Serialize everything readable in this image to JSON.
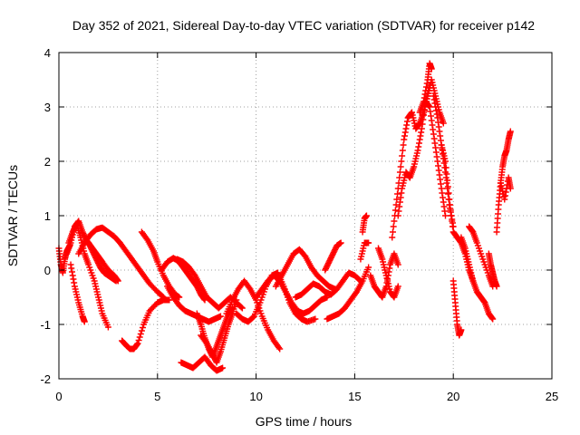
{
  "chart_data": {
    "type": "scatter",
    "title": "Day 352 of 2021, Sidereal Day-to-day VTEC variation (SDTVAR) for receiver p142",
    "xlabel": "GPS time / hours",
    "ylabel": "SDTVAR / TECUs",
    "xlim": [
      0,
      25
    ],
    "ylim": [
      -2,
      4
    ],
    "xticks": [
      "0",
      "5",
      "10",
      "15",
      "20",
      "25"
    ],
    "yticks": [
      "-2",
      "-1",
      "0",
      "1",
      "2",
      "3",
      "4"
    ],
    "grid": true,
    "marker": "+",
    "series": [
      {
        "name": "SDTVAR",
        "color": "#ff0000",
        "tracks": [
          {
            "x": [
              0.0,
              0.1,
              0.2,
              0.3,
              0.4,
              0.55
            ],
            "y": [
              0.4,
              0.1,
              -0.05,
              0.2,
              0.35,
              0.45
            ]
          },
          {
            "x": [
              0.4,
              0.6,
              0.8,
              1.0,
              1.2,
              1.4,
              1.6,
              1.8,
              2.0,
              2.2,
              2.5,
              2.8,
              3.0
            ],
            "y": [
              0.3,
              0.5,
              0.8,
              0.9,
              0.7,
              0.55,
              0.45,
              0.35,
              0.25,
              0.15,
              0.0,
              -0.1,
              -0.2
            ]
          },
          {
            "x": [
              0.5,
              0.7,
              0.9,
              1.1,
              1.3,
              1.5,
              1.8,
              2.0,
              2.2,
              2.5
            ],
            "y": [
              0.5,
              0.7,
              0.85,
              0.6,
              0.3,
              0.1,
              -0.2,
              -0.5,
              -0.8,
              -1.05
            ]
          },
          {
            "x": [
              0.6,
              0.8,
              1.0,
              1.2,
              1.3
            ],
            "y": [
              0.1,
              -0.3,
              -0.6,
              -0.85,
              -0.95
            ]
          },
          {
            "x": [
              1.0,
              1.3,
              1.6,
              1.9,
              2.2,
              2.5,
              2.8,
              3.1,
              3.4,
              3.7,
              4.0,
              4.3,
              4.6,
              5.0,
              5.3
            ],
            "y": [
              0.3,
              0.5,
              0.65,
              0.75,
              0.78,
              0.7,
              0.62,
              0.5,
              0.35,
              0.2,
              0.05,
              -0.1,
              -0.25,
              -0.4,
              -0.5
            ]
          },
          {
            "x": [
              1.5,
              1.7,
              1.9,
              2.1,
              2.3,
              2.5,
              2.7,
              2.9
            ],
            "y": [
              0.5,
              0.35,
              0.2,
              0.05,
              -0.05,
              -0.1,
              -0.15,
              -0.2
            ]
          },
          {
            "x": [
              3.2,
              3.4,
              3.6,
              3.8,
              4.0,
              4.3,
              4.6,
              5.0,
              5.3,
              5.6
            ],
            "y": [
              -1.3,
              -1.38,
              -1.45,
              -1.45,
              -1.35,
              -1.0,
              -0.75,
              -0.6,
              -0.55,
              -0.55
            ]
          },
          {
            "x": [
              4.2,
              4.5,
              4.8,
              5.0,
              5.3,
              5.6,
              5.9,
              6.1
            ],
            "y": [
              0.7,
              0.55,
              0.35,
              0.15,
              -0.1,
              -0.3,
              -0.45,
              -0.5
            ]
          },
          {
            "x": [
              5.2,
              5.5,
              5.8,
              6.0,
              6.2,
              6.4,
              6.6,
              6.8,
              7.0,
              7.2,
              7.4
            ],
            "y": [
              0.0,
              0.15,
              0.22,
              0.18,
              0.1,
              0.0,
              -0.1,
              -0.2,
              -0.3,
              -0.45,
              -0.55
            ]
          },
          {
            "x": [
              5.5,
              5.8,
              6.1,
              6.4,
              6.7,
              7.0,
              7.3,
              7.6,
              7.9,
              8.2
            ],
            "y": [
              -0.3,
              -0.5,
              -0.65,
              -0.75,
              -0.8,
              -0.85,
              -0.9,
              -0.95,
              -0.9,
              -0.85
            ]
          },
          {
            "x": [
              6.0,
              6.3,
              6.6,
              6.9,
              7.2,
              7.5,
              7.8,
              8.1,
              8.4,
              8.7,
              9.0,
              9.3
            ],
            "y": [
              0.2,
              0.15,
              0.05,
              -0.1,
              -0.3,
              -0.5,
              -0.6,
              -0.7,
              -0.6,
              -0.5,
              -0.6,
              -0.7
            ]
          },
          {
            "x": [
              6.2,
              6.5,
              6.8,
              7.1,
              7.4,
              7.7,
              8.0,
              8.3
            ],
            "y": [
              -1.7,
              -1.75,
              -1.8,
              -1.7,
              -1.6,
              -1.75,
              -1.85,
              -1.8
            ]
          },
          {
            "x": [
              7.0,
              7.2,
              7.4,
              7.6,
              7.8,
              8.0,
              8.2,
              8.4,
              8.6,
              8.8
            ],
            "y": [
              -0.8,
              -1.0,
              -1.25,
              -1.45,
              -1.6,
              -1.4,
              -1.2,
              -1.0,
              -0.8,
              -0.7
            ]
          },
          {
            "x": [
              7.2,
              7.5,
              7.8,
              8.0,
              8.2,
              8.4,
              8.6,
              8.8,
              9.0
            ],
            "y": [
              -1.2,
              -1.35,
              -1.55,
              -1.7,
              -1.5,
              -1.25,
              -1.0,
              -0.8,
              -0.55
            ]
          },
          {
            "x": [
              8.5,
              8.8,
              9.1,
              9.4,
              9.7,
              10.0,
              10.3,
              10.6,
              10.9,
              11.2
            ],
            "y": [
              -0.8,
              -0.55,
              -0.35,
              -0.2,
              -0.35,
              -0.55,
              -0.85,
              -1.1,
              -1.3,
              -1.45
            ]
          },
          {
            "x": [
              9.0,
              9.3,
              9.6,
              9.9,
              10.2,
              10.5,
              10.8,
              11.1,
              11.4,
              11.7,
              12.0,
              12.3,
              12.6,
              13.0
            ],
            "y": [
              -0.8,
              -0.9,
              -0.95,
              -0.85,
              -0.6,
              -0.3,
              -0.1,
              -0.05,
              -0.3,
              -0.6,
              -0.8,
              -0.9,
              -0.95,
              -0.9
            ]
          },
          {
            "x": [
              10.0,
              10.3,
              10.6,
              10.9,
              11.2,
              11.5,
              11.8,
              12.1,
              12.4,
              12.7,
              13.0,
              13.3,
              13.6
            ],
            "y": [
              -0.5,
              -0.35,
              -0.2,
              -0.1,
              -0.2,
              -0.4,
              -0.6,
              -0.75,
              -0.8,
              -0.75,
              -0.65,
              -0.55,
              -0.5
            ]
          },
          {
            "x": [
              11.0,
              11.3,
              11.6,
              11.9,
              12.2,
              12.5,
              12.8,
              13.1,
              13.4,
              13.7,
              14.0
            ],
            "y": [
              -0.3,
              -0.1,
              0.1,
              0.3,
              0.38,
              0.25,
              0.05,
              -0.1,
              -0.2,
              -0.3,
              -0.35
            ]
          },
          {
            "x": [
              12.0,
              12.3,
              12.6,
              12.9,
              13.2,
              13.5,
              13.8,
              14.1,
              14.4,
              14.7,
              15.0,
              15.3
            ],
            "y": [
              -0.5,
              -0.45,
              -0.35,
              -0.25,
              -0.3,
              -0.4,
              -0.45,
              -0.35,
              -0.2,
              -0.05,
              -0.1,
              -0.2
            ]
          },
          {
            "x": [
              13.5,
              13.7,
              13.9,
              14.1,
              14.3
            ],
            "y": [
              0.0,
              0.15,
              0.3,
              0.45,
              0.5
            ]
          },
          {
            "x": [
              13.6,
              13.9,
              14.2,
              14.5,
              14.8,
              15.1,
              15.4,
              15.7
            ],
            "y": [
              -0.9,
              -0.85,
              -0.8,
              -0.7,
              -0.55,
              -0.4,
              -0.2,
              0.05
            ]
          },
          {
            "x": [
              15.3,
              15.5,
              15.7
            ],
            "y": [
              0.2,
              0.5,
              0.5
            ]
          },
          {
            "x": [
              15.4,
              15.5,
              15.6
            ],
            "y": [
              0.7,
              0.95,
              1.0
            ]
          },
          {
            "x": [
              15.8,
              16.0,
              16.2,
              16.4,
              16.6,
              16.8,
              17.0,
              17.2
            ],
            "y": [
              -0.1,
              -0.3,
              -0.4,
              -0.5,
              -0.3,
              0.1,
              0.3,
              0.1
            ]
          },
          {
            "x": [
              16.2,
              16.4,
              16.6,
              16.8,
              17.0,
              17.2
            ],
            "y": [
              0.4,
              0.2,
              -0.1,
              -0.4,
              -0.5,
              -0.3
            ]
          },
          {
            "x": [
              16.9,
              17.1,
              17.3,
              17.5,
              17.7,
              17.9,
              18.1,
              18.3,
              18.5,
              18.7,
              18.9,
              19.1,
              19.3,
              19.5
            ],
            "y": [
              0.6,
              1.2,
              1.8,
              2.4,
              2.8,
              2.9,
              2.6,
              2.7,
              2.9,
              3.2,
              3.5,
              3.2,
              2.9,
              2.7
            ]
          },
          {
            "x": [
              17.2,
              17.4,
              17.6,
              17.8,
              18.0,
              18.2,
              18.4,
              18.6,
              18.8
            ],
            "y": [
              1.0,
              1.5,
              1.8,
              1.7,
              1.9,
              2.2,
              2.6,
              3.1,
              3.4
            ]
          },
          {
            "x": [
              18.3,
              18.5,
              18.7,
              18.8,
              18.9
            ],
            "y": [
              2.9,
              3.1,
              3.5,
              3.8,
              3.7
            ]
          },
          {
            "x": [
              18.6,
              18.8,
              19.0,
              19.2,
              19.4,
              19.6
            ],
            "y": [
              3.1,
              3.0,
              2.5,
              2.0,
              1.5,
              1.0
            ]
          },
          {
            "x": [
              19.0,
              19.2,
              19.4,
              19.6,
              19.8,
              20.0
            ],
            "y": [
              3.2,
              2.8,
              2.3,
              1.8,
              1.2,
              0.8
            ]
          },
          {
            "x": [
              19.4,
              19.6,
              19.8,
              20.0,
              20.2,
              20.4,
              20.6,
              20.8,
              21.0
            ],
            "y": [
              2.3,
              2.0,
              1.3,
              0.7,
              0.6,
              0.5,
              0.3,
              0.0,
              -0.2
            ]
          },
          {
            "x": [
              20.0,
              20.1,
              20.2,
              20.3,
              20.4
            ],
            "y": [
              -0.2,
              -0.6,
              -1.0,
              -1.2,
              -1.1
            ]
          },
          {
            "x": [
              20.4,
              20.6,
              20.8,
              21.0,
              21.2,
              21.4,
              21.6,
              21.8,
              22.0
            ],
            "y": [
              0.6,
              0.4,
              0.1,
              -0.2,
              -0.4,
              -0.5,
              -0.6,
              -0.8,
              -0.9
            ]
          },
          {
            "x": [
              20.8,
              21.0,
              21.2,
              21.5,
              21.8,
              22.0
            ],
            "y": [
              0.8,
              0.7,
              0.5,
              0.2,
              -0.1,
              -0.3
            ]
          },
          {
            "x": [
              21.8,
              21.9,
              22.0,
              22.1,
              22.2
            ],
            "y": [
              0.3,
              0.1,
              -0.05,
              -0.2,
              -0.3
            ]
          },
          {
            "x": [
              22.2,
              22.3,
              22.4,
              22.5,
              22.6,
              22.7,
              22.8,
              22.9
            ],
            "y": [
              0.7,
              1.2,
              1.6,
              1.9,
              2.1,
              2.2,
              2.4,
              2.55
            ]
          },
          {
            "x": [
              22.4,
              22.6,
              22.8,
              22.9
            ],
            "y": [
              1.6,
              1.3,
              1.7,
              1.5
            ]
          }
        ]
      }
    ]
  }
}
